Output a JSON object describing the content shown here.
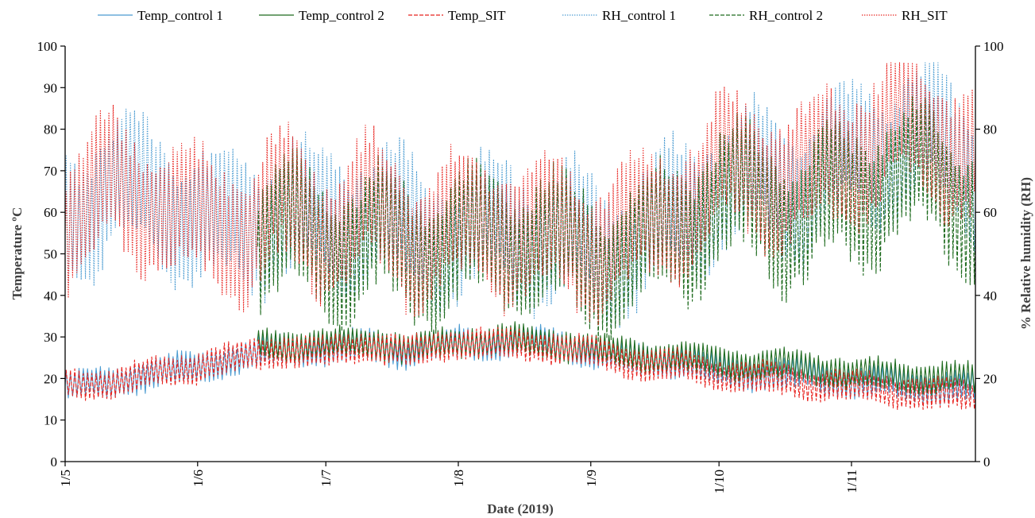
{
  "chart_data": {
    "type": "line",
    "title": "",
    "xlabel": "Date (2019)",
    "ylabel_left": "Temperature ºC",
    "ylabel_right": "% Relative humidity (RH)",
    "x_range": [
      "2019-05-01",
      "2019-11-30"
    ],
    "x_tick_labels": [
      {
        "label": "1/5",
        "date": "2019-05-01"
      },
      {
        "label": "1/6",
        "date": "2019-06-01"
      },
      {
        "label": "1/7",
        "date": "2019-07-01"
      },
      {
        "label": "1/8",
        "date": "2019-08-01"
      },
      {
        "label": "1/9",
        "date": "2019-09-01"
      },
      {
        "label": "1/10",
        "date": "2019-10-01"
      },
      {
        "label": "1/11",
        "date": "2019-11-01"
      }
    ],
    "ylim_left": [
      0,
      100
    ],
    "ylim_right": [
      0,
      100
    ],
    "y_ticks_left": [
      0,
      10,
      20,
      30,
      40,
      50,
      60,
      70,
      80,
      90,
      100
    ],
    "y_ticks_right": [
      0,
      20,
      40,
      60,
      80,
      100
    ],
    "grid": false,
    "legend_position": "top",
    "series": [
      {
        "name": "Temp_control 1",
        "axis": "left",
        "color": "#4a9bd1",
        "dash": "solid",
        "x": [
          "2019-05-01",
          "2019-05-11",
          "2019-05-21",
          "2019-06-01",
          "2019-06-11",
          "2019-06-21",
          "2019-07-01",
          "2019-07-11",
          "2019-07-21",
          "2019-08-01",
          "2019-08-11",
          "2019-08-21",
          "2019-09-01",
          "2019-09-11",
          "2019-09-21",
          "2019-10-01",
          "2019-10-11",
          "2019-10-21",
          "2019-11-01",
          "2019-11-11",
          "2019-11-21",
          "2019-11-30"
        ],
        "y": [
          18,
          19,
          21,
          23,
          25,
          27,
          27,
          28,
          26,
          29,
          28,
          29,
          26,
          25,
          24,
          22,
          21,
          21,
          19,
          19,
          18,
          18
        ]
      },
      {
        "name": "Temp_control 2",
        "axis": "left",
        "color": "#1e6b1e",
        "dash": "solid",
        "x": [
          "2019-06-15",
          "2019-06-21",
          "2019-07-01",
          "2019-07-11",
          "2019-07-21",
          "2019-08-01",
          "2019-08-11",
          "2019-08-21",
          "2019-09-01",
          "2019-09-11",
          "2019-09-21",
          "2019-10-01",
          "2019-10-11",
          "2019-10-21",
          "2019-11-01",
          "2019-11-11",
          "2019-11-21",
          "2019-11-30"
        ],
        "y": [
          28,
          28,
          28,
          29,
          27,
          29,
          29,
          29,
          27,
          26,
          25,
          24,
          23,
          23,
          21,
          21,
          20,
          20
        ]
      },
      {
        "name": "Temp_SIT",
        "axis": "left",
        "color": "#e8231f",
        "dash": "dashed",
        "x": [
          "2019-05-01",
          "2019-05-11",
          "2019-05-21",
          "2019-06-01",
          "2019-06-11",
          "2019-06-21",
          "2019-07-01",
          "2019-07-11",
          "2019-07-21",
          "2019-08-01",
          "2019-08-11",
          "2019-08-21",
          "2019-09-01",
          "2019-09-11",
          "2019-09-21",
          "2019-10-01",
          "2019-10-11",
          "2019-10-21",
          "2019-11-01",
          "2019-11-11",
          "2019-11-21",
          "2019-11-30"
        ],
        "y": [
          18,
          19,
          21,
          23,
          25,
          27,
          26,
          28,
          26,
          29,
          28,
          28,
          26,
          24,
          23,
          21,
          20,
          19,
          18,
          17,
          16,
          16
        ]
      },
      {
        "name": "RH_control 1",
        "axis": "right",
        "color": "#4a9bd1",
        "dash": "dotted",
        "x": [
          "2019-05-01",
          "2019-05-11",
          "2019-05-21",
          "2019-06-01",
          "2019-06-11",
          "2019-06-21",
          "2019-07-01",
          "2019-07-11",
          "2019-07-21",
          "2019-08-01",
          "2019-08-11",
          "2019-08-21",
          "2019-09-01",
          "2019-09-11",
          "2019-09-21",
          "2019-10-01",
          "2019-10-11",
          "2019-10-21",
          "2019-11-01",
          "2019-11-11",
          "2019-11-21",
          "2019-11-30"
        ],
        "y": [
          58,
          66,
          65,
          58,
          57,
          62,
          57,
          60,
          55,
          55,
          57,
          55,
          52,
          53,
          59,
          67,
          68,
          66,
          73,
          77,
          77,
          70
        ]
      },
      {
        "name": "RH_control 2",
        "axis": "right",
        "color": "#1e6b1e",
        "dash": "dashed",
        "x": [
          "2019-06-15",
          "2019-06-21",
          "2019-07-01",
          "2019-07-11",
          "2019-07-21",
          "2019-08-01",
          "2019-08-11",
          "2019-08-21",
          "2019-09-01",
          "2019-09-11",
          "2019-09-21",
          "2019-10-01",
          "2019-10-11",
          "2019-10-21",
          "2019-11-01",
          "2019-11-11",
          "2019-11-21",
          "2019-11-30"
        ],
        "y": [
          55,
          55,
          52,
          54,
          50,
          52,
          54,
          52,
          49,
          50,
          56,
          62,
          62,
          58,
          64,
          68,
          68,
          62
        ]
      },
      {
        "name": "RH_SIT",
        "axis": "right",
        "color": "#e8231f",
        "dash": "dotted",
        "x": [
          "2019-05-01",
          "2019-05-11",
          "2019-05-21",
          "2019-06-01",
          "2019-06-11",
          "2019-06-21",
          "2019-07-01",
          "2019-07-11",
          "2019-07-21",
          "2019-08-01",
          "2019-08-11",
          "2019-08-21",
          "2019-09-01",
          "2019-09-11",
          "2019-09-21",
          "2019-10-01",
          "2019-10-11",
          "2019-10-21",
          "2019-11-01",
          "2019-11-11",
          "2019-11-21",
          "2019-11-30"
        ],
        "y": [
          58,
          65,
          64,
          57,
          57,
          61,
          57,
          60,
          55,
          56,
          57,
          55,
          53,
          54,
          61,
          70,
          71,
          68,
          76,
          80,
          80,
          73
        ]
      }
    ]
  }
}
